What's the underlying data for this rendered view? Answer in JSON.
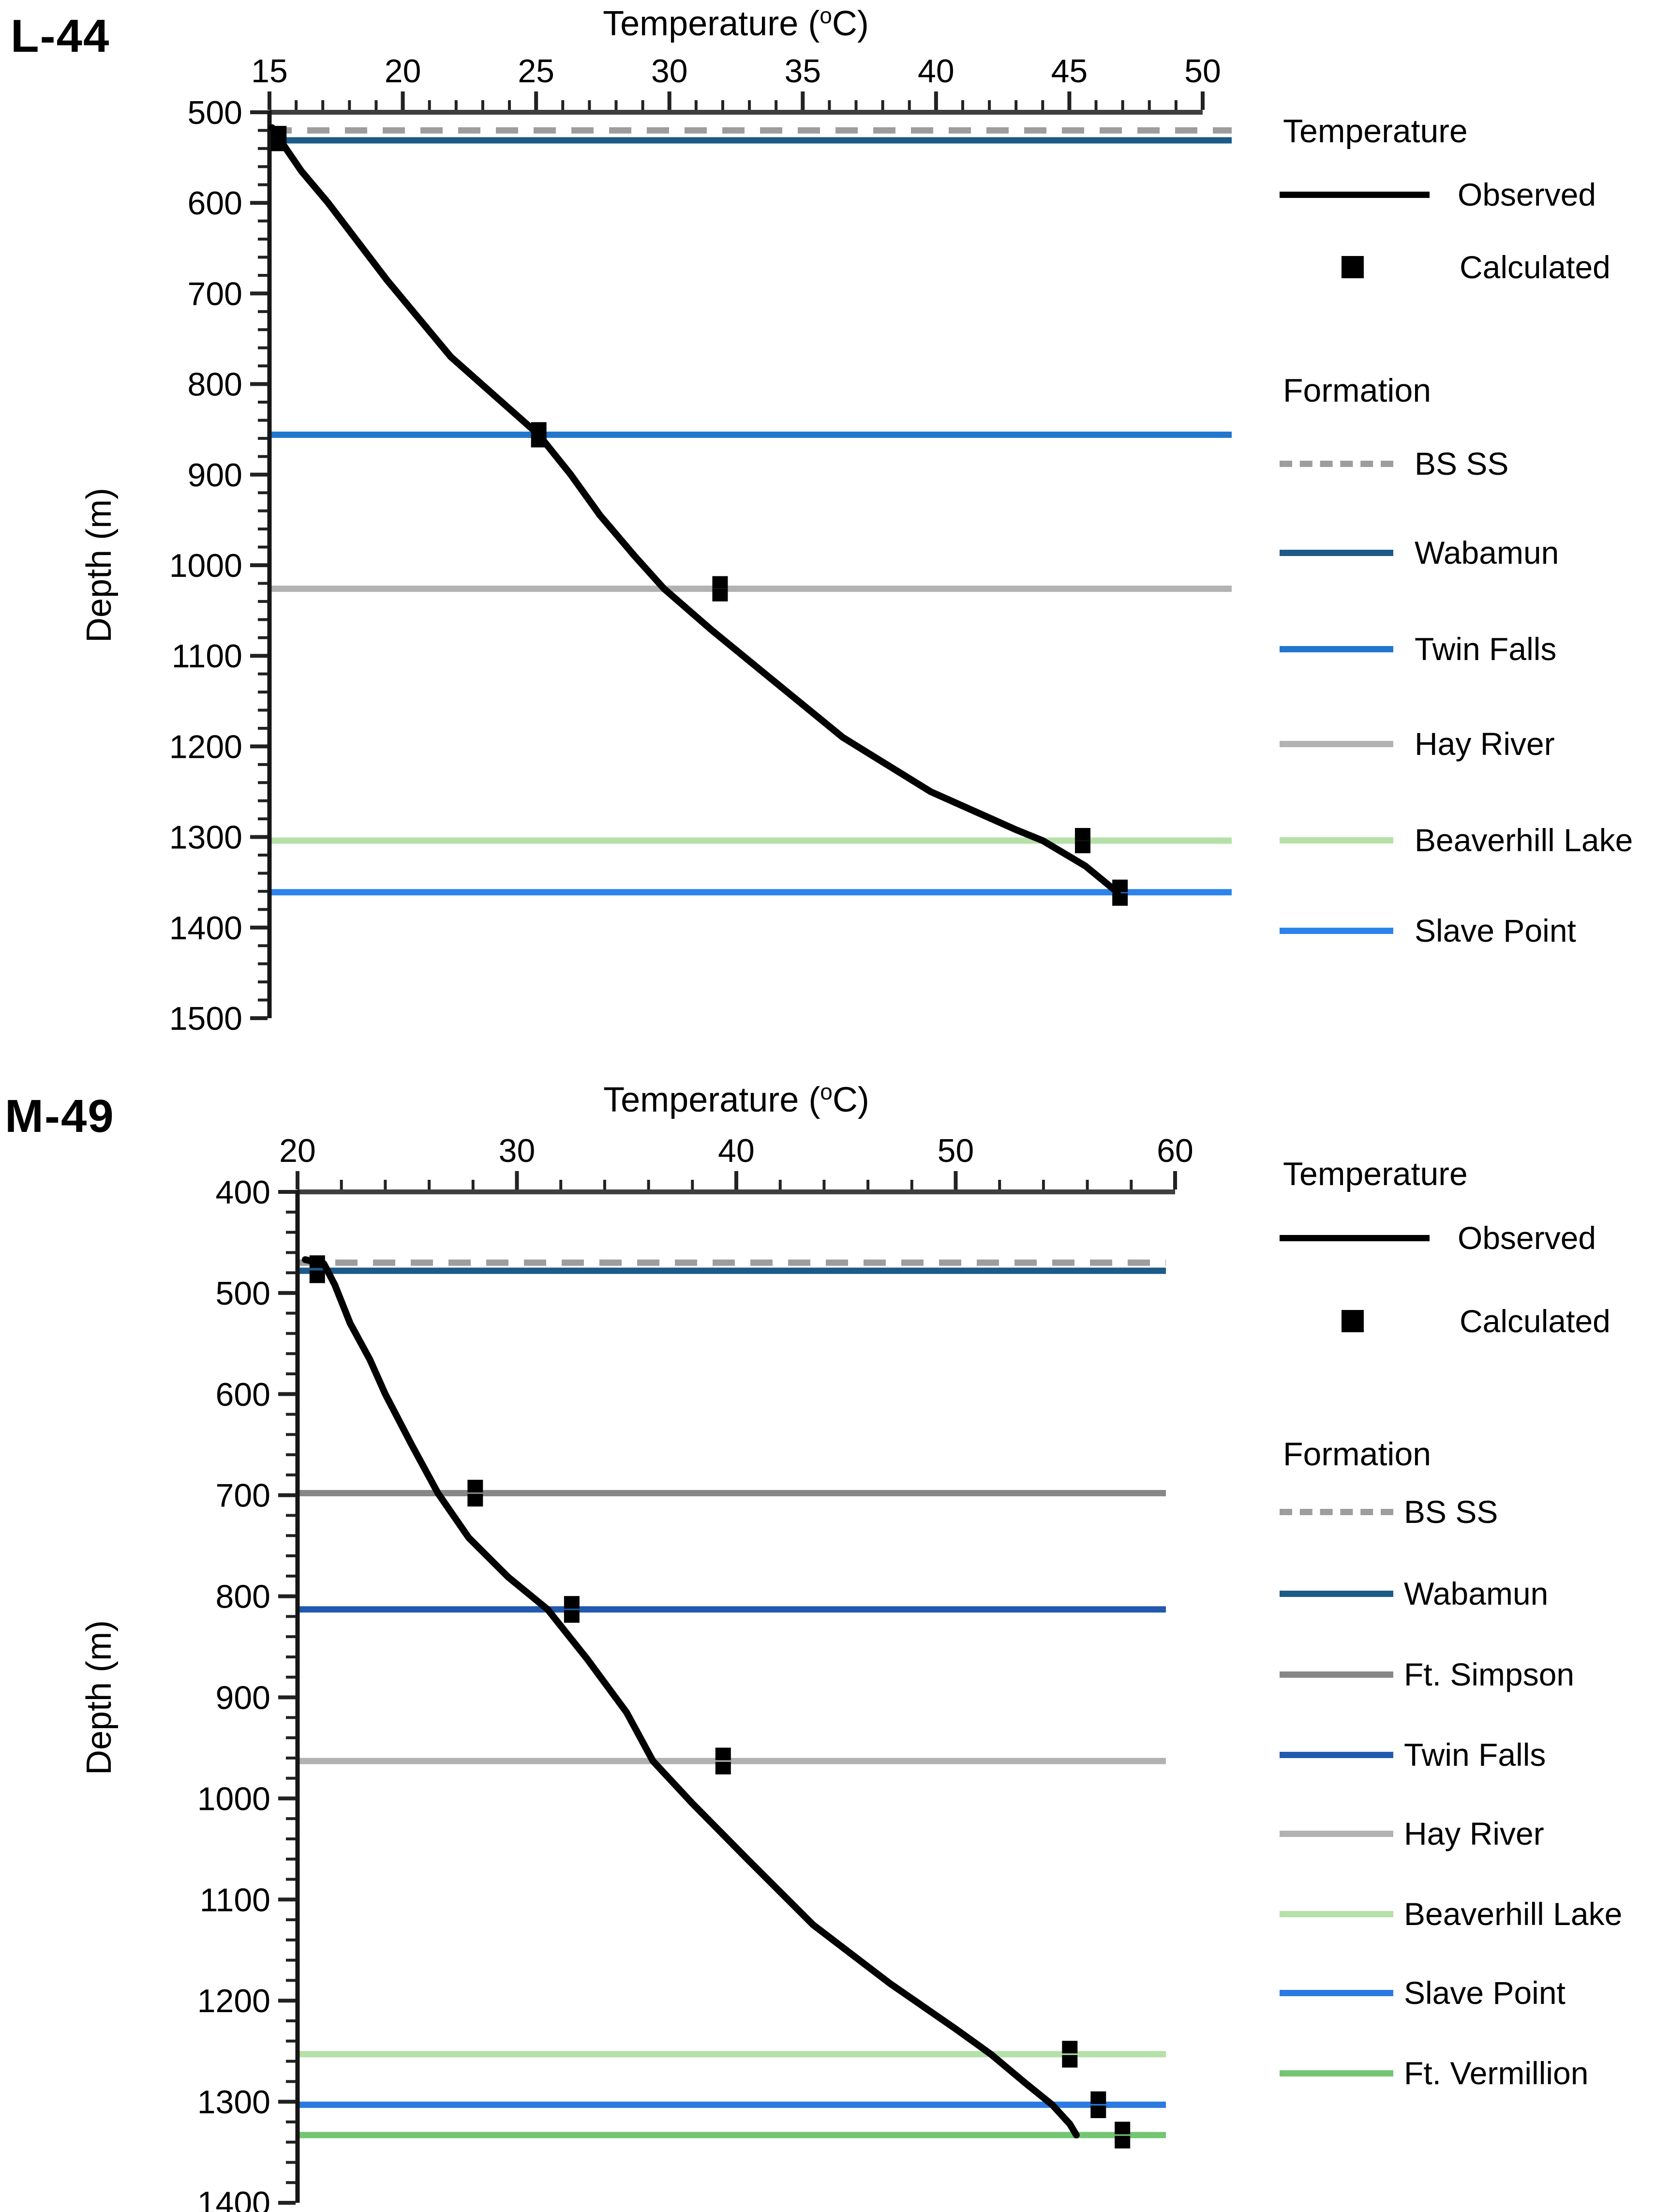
{
  "chart_data": [
    {
      "id": "L-44",
      "type": "line",
      "title": "L-44",
      "xlabel": {
        "pre": "Temperature (",
        "sup": "o",
        "post": "C)"
      },
      "ylabel": "Depth (m)",
      "x_axis": {
        "min": 15,
        "max": 50,
        "major_step": 5,
        "minor_step": 1,
        "ticks": [
          15,
          20,
          25,
          30,
          35,
          40,
          45,
          50
        ]
      },
      "y_axis": {
        "min": 500,
        "max": 1500,
        "major_step": 100,
        "minor_step": 20,
        "ticks": [
          500,
          600,
          700,
          800,
          900,
          1000,
          1100,
          1200,
          1300,
          1400,
          1500
        ]
      },
      "grid": false,
      "formations": [
        {
          "name": "BS SS",
          "depth": 520,
          "color": "#9d9d9d",
          "dashed": true
        },
        {
          "name": "Wabamun",
          "depth": 531,
          "color": "#1c5a87",
          "dashed": false
        },
        {
          "name": "Twin Falls",
          "depth": 856,
          "color": "#2176cd",
          "dashed": false
        },
        {
          "name": "Hay River",
          "depth": 1026,
          "color": "#b2b2b2",
          "dashed": false
        },
        {
          "name": "Beaverhill Lake",
          "depth": 1304,
          "color": "#b5e0a8",
          "dashed": false
        },
        {
          "name": "Slave Point",
          "depth": 1361,
          "color": "#2e83ea",
          "dashed": false
        }
      ],
      "series": [
        {
          "name": "Observed",
          "points": [
            [
              15.1,
              517
            ],
            [
              15.5,
              535
            ],
            [
              16.2,
              565
            ],
            [
              17.2,
              600
            ],
            [
              19.4,
              685
            ],
            [
              21.8,
              770
            ],
            [
              25.1,
              856
            ],
            [
              26.3,
              900
            ],
            [
              27.4,
              945
            ],
            [
              28.7,
              990
            ],
            [
              29.8,
              1026
            ],
            [
              31.6,
              1072
            ],
            [
              33.8,
              1125
            ],
            [
              36.5,
              1190
            ],
            [
              39.8,
              1250
            ],
            [
              43.0,
              1292
            ],
            [
              44.0,
              1304
            ],
            [
              45.6,
              1332
            ],
            [
              46.8,
              1361
            ]
          ]
        },
        {
          "name": "Calculated",
          "points": [
            [
              15.35,
              522
            ],
            [
              15.35,
              536
            ],
            [
              25.1,
              849
            ],
            [
              25.1,
              863
            ],
            [
              31.9,
              1019
            ],
            [
              31.9,
              1033
            ],
            [
              45.5,
              1297
            ],
            [
              45.5,
              1311
            ],
            [
              46.9,
              1354
            ],
            [
              46.9,
              1369
            ]
          ]
        }
      ],
      "legend": {
        "temperature_header": "Temperature",
        "observed_label": "Observed",
        "calculated_label": "Calculated",
        "formation_header": "Formation",
        "formations": [
          {
            "label": "BS SS",
            "color": "#9d9d9d",
            "dashed": true
          },
          {
            "label": "Wabamun",
            "color": "#1c5a87",
            "dashed": false
          },
          {
            "label": "Twin Falls",
            "color": "#2176cd",
            "dashed": false
          },
          {
            "label": "Hay River",
            "color": "#b2b2b2",
            "dashed": false
          },
          {
            "label": "Beaverhill Lake",
            "color": "#b5e0a8",
            "dashed": false
          },
          {
            "label": "Slave Point",
            "color": "#2e83ea",
            "dashed": false
          }
        ]
      }
    },
    {
      "id": "M-49",
      "type": "line",
      "title": "M-49",
      "xlabel": {
        "pre": "Temperature (",
        "sup": "o",
        "post": "C)"
      },
      "ylabel": "Depth (m)",
      "x_axis": {
        "min": 20,
        "max": 60,
        "major_step": 10,
        "minor_step": 2,
        "ticks": [
          20,
          30,
          40,
          50,
          60
        ]
      },
      "y_axis": {
        "min": 400,
        "max": 1400,
        "major_step": 100,
        "minor_step": 20,
        "ticks": [
          400,
          500,
          600,
          700,
          800,
          900,
          1000,
          1100,
          1200,
          1300,
          1400
        ]
      },
      "grid": false,
      "formations": [
        {
          "name": "BS SS",
          "depth": 470,
          "color": "#9d9d9d",
          "dashed": true
        },
        {
          "name": "Wabamun",
          "depth": 478,
          "color": "#1c5a87",
          "dashed": false
        },
        {
          "name": "Ft. Simpson",
          "depth": 698,
          "color": "#878787",
          "dashed": false
        },
        {
          "name": "Twin Falls",
          "depth": 813,
          "color": "#2259ae",
          "dashed": false
        },
        {
          "name": "Hay River",
          "depth": 963,
          "color": "#b2b2b2",
          "dashed": false
        },
        {
          "name": "Beaverhill Lake",
          "depth": 1253,
          "color": "#b5e0a8",
          "dashed": false
        },
        {
          "name": "Slave Point",
          "depth": 1303,
          "color": "#2b7ae2",
          "dashed": false
        },
        {
          "name": "Ft. Vermillion",
          "depth": 1333,
          "color": "#74c573",
          "dashed": false
        }
      ],
      "series": [
        {
          "name": "Observed",
          "points": [
            [
              20.35,
              467
            ],
            [
              21.2,
              471
            ],
            [
              21.7,
              492
            ],
            [
              22.4,
              530
            ],
            [
              23.3,
              566
            ],
            [
              24.0,
              600
            ],
            [
              25.2,
              650
            ],
            [
              26.4,
              698
            ],
            [
              27.8,
              742
            ],
            [
              29.6,
              781
            ],
            [
              31.4,
              813
            ],
            [
              33.2,
              862
            ],
            [
              35.0,
              915
            ],
            [
              36.2,
              963
            ],
            [
              38.0,
              1005
            ],
            [
              40.5,
              1060
            ],
            [
              43.5,
              1125
            ],
            [
              47.0,
              1183
            ],
            [
              50.0,
              1228
            ],
            [
              51.6,
              1253
            ],
            [
              53.2,
              1282
            ],
            [
              54.4,
              1303
            ],
            [
              55.2,
              1322
            ],
            [
              55.5,
              1333
            ]
          ]
        },
        {
          "name": "Calculated",
          "points": [
            [
              20.9,
              469
            ],
            [
              20.9,
              484
            ],
            [
              28.1,
              691
            ],
            [
              28.1,
              705
            ],
            [
              32.5,
              806
            ],
            [
              32.5,
              820
            ],
            [
              39.4,
              956
            ],
            [
              39.4,
              970
            ],
            [
              55.2,
              1246
            ],
            [
              55.2,
              1260
            ],
            [
              56.5,
              1296
            ],
            [
              56.5,
              1310
            ],
            [
              57.6,
              1326
            ],
            [
              57.6,
              1340
            ]
          ]
        }
      ],
      "legend": {
        "temperature_header": "Temperature",
        "observed_label": "Observed",
        "calculated_label": "Calculated",
        "formation_header": "Formation",
        "formations": [
          {
            "label": "BS SS",
            "color": "#9d9d9d",
            "dashed": true
          },
          {
            "label": "Wabamun",
            "color": "#1c5a87",
            "dashed": false
          },
          {
            "label": "Ft. Simpson",
            "color": "#878787",
            "dashed": false
          },
          {
            "label": "Twin Falls",
            "color": "#2259ae",
            "dashed": false
          },
          {
            "label": "Hay River",
            "color": "#b2b2b2",
            "dashed": false
          },
          {
            "label": "Beaverhill Lake",
            "color": "#b5e0a8",
            "dashed": false
          },
          {
            "label": "Slave Point",
            "color": "#2b7ae2",
            "dashed": false
          },
          {
            "label": "Ft. Vermillion",
            "color": "#74c573",
            "dashed": false
          }
        ]
      }
    }
  ]
}
